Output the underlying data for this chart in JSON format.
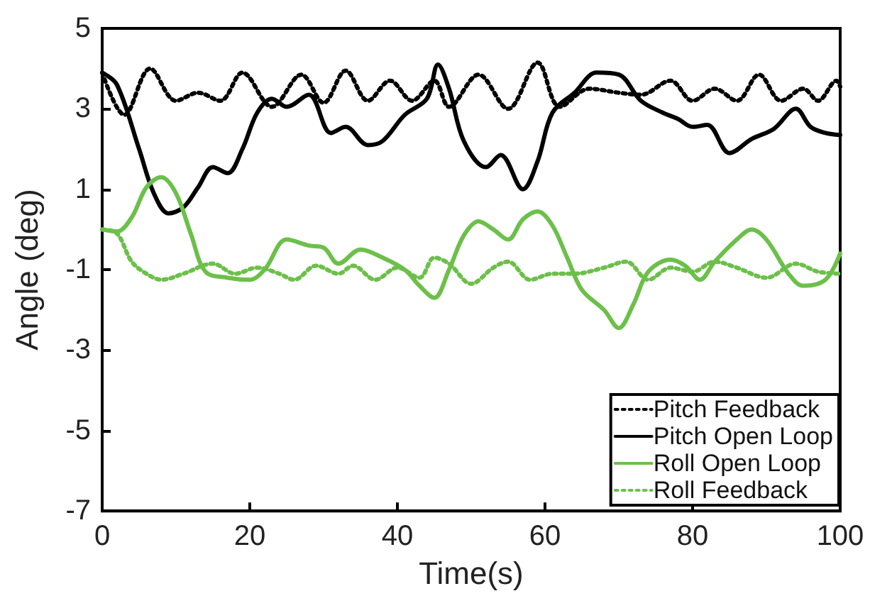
{
  "chart_data": {
    "type": "line",
    "xlabel": "Time(s)",
    "ylabel": "Angle (deg)",
    "xlim": [
      0,
      100
    ],
    "xticks": [
      0,
      20,
      40,
      60,
      80,
      100
    ],
    "ylim": [
      -7,
      5
    ],
    "yticks": [
      -7,
      -5,
      -3,
      -1,
      1,
      3,
      5
    ],
    "grid": false,
    "legend": "bottom right",
    "marker": "none",
    "series": [
      {
        "name": "Pitch Feedback",
        "color": "#000000",
        "line_style": "dotted",
        "x": [
          0,
          3,
          6.5,
          10,
          13,
          16,
          19,
          23,
          27,
          30,
          33,
          36,
          39,
          42,
          45,
          47,
          51,
          55,
          59,
          62,
          66,
          70,
          73,
          77,
          80,
          83,
          86,
          89,
          92,
          95,
          97,
          99.5,
          100
        ],
        "values": [
          3.9,
          2.85,
          4.0,
          3.2,
          3.4,
          3.2,
          3.9,
          3.05,
          3.85,
          3.15,
          3.95,
          3.2,
          3.7,
          3.2,
          3.7,
          3.05,
          3.85,
          3.0,
          4.15,
          3.05,
          3.5,
          3.4,
          3.35,
          3.7,
          3.2,
          3.5,
          3.2,
          3.85,
          3.2,
          3.5,
          3.2,
          3.7,
          3.55
        ]
      },
      {
        "name": "Pitch Open Loop",
        "color": "#000000",
        "line_style": "solid",
        "x": [
          0,
          2,
          5,
          7,
          9,
          11,
          13,
          15,
          17,
          19,
          21,
          23,
          25,
          28,
          31,
          33,
          36,
          38,
          41,
          44,
          45.5,
          47,
          49,
          52,
          54,
          57,
          59,
          61,
          64,
          67,
          70,
          73,
          76,
          78,
          80,
          82,
          85,
          88,
          91,
          94,
          96,
          98,
          100
        ],
        "values": [
          3.9,
          3.6,
          2.0,
          0.9,
          0.4,
          0.55,
          1.05,
          1.55,
          1.4,
          2.0,
          2.9,
          3.25,
          3.05,
          3.35,
          2.4,
          2.55,
          2.1,
          2.2,
          2.85,
          3.25,
          4.1,
          3.5,
          2.2,
          1.55,
          1.85,
          1.0,
          1.7,
          2.9,
          3.4,
          3.9,
          3.85,
          3.2,
          2.9,
          2.75,
          2.55,
          2.6,
          1.9,
          2.25,
          2.5,
          3.0,
          2.55,
          2.4,
          2.35
        ]
      },
      {
        "name": "Roll Open Loop",
        "color": "#6cc04a",
        "line_style": "solid",
        "x": [
          0,
          2,
          4,
          6,
          8,
          10,
          12,
          14,
          17,
          20,
          22,
          25,
          28,
          30,
          32,
          35,
          38,
          41,
          43,
          45,
          47,
          49,
          51,
          53,
          55,
          57,
          59,
          61,
          63,
          65,
          68,
          70,
          72,
          74,
          77,
          79,
          81,
          83,
          86,
          88,
          90,
          93,
          95,
          98,
          100
        ],
        "values": [
          0.0,
          -0.05,
          0.3,
          1.05,
          1.3,
          0.9,
          -0.1,
          -1.05,
          -1.2,
          -1.25,
          -1.0,
          -0.25,
          -0.4,
          -0.45,
          -0.85,
          -0.5,
          -0.7,
          -1.0,
          -1.4,
          -1.7,
          -1.0,
          -0.15,
          0.2,
          0.0,
          -0.25,
          0.25,
          0.45,
          0.1,
          -0.7,
          -1.5,
          -2.0,
          -2.45,
          -1.85,
          -1.05,
          -0.75,
          -0.9,
          -1.25,
          -0.8,
          -0.25,
          0.0,
          -0.25,
          -1.1,
          -1.4,
          -1.25,
          -0.6
        ]
      },
      {
        "name": "Roll Feedback",
        "color": "#6cc04a",
        "line_style": "dotted",
        "x": [
          0,
          2,
          4,
          6,
          8,
          11,
          15,
          18,
          21,
          24,
          26,
          29,
          32,
          34,
          37,
          40,
          43,
          45,
          47,
          50,
          53,
          55,
          58,
          61,
          64,
          68,
          71,
          74,
          77,
          80,
          83,
          86,
          90,
          94,
          97,
          100
        ],
        "values": [
          0.0,
          -0.1,
          -0.8,
          -1.1,
          -1.25,
          -1.1,
          -0.85,
          -1.1,
          -0.95,
          -1.1,
          -1.25,
          -0.9,
          -1.1,
          -0.9,
          -1.25,
          -0.95,
          -1.2,
          -0.7,
          -0.85,
          -1.35,
          -0.95,
          -0.8,
          -1.25,
          -1.1,
          -1.1,
          -0.95,
          -0.8,
          -1.25,
          -0.95,
          -1.05,
          -0.8,
          -0.95,
          -1.2,
          -0.85,
          -1.05,
          -1.1
        ]
      }
    ]
  }
}
